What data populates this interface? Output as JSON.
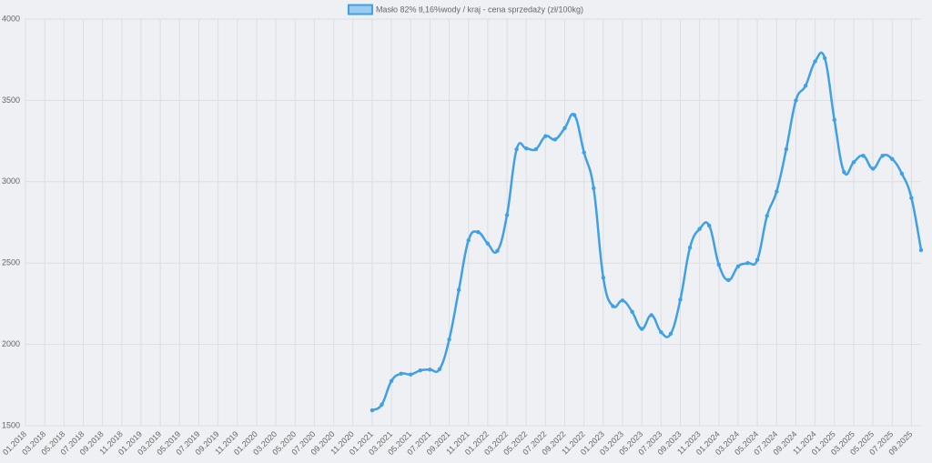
{
  "chart_data": {
    "type": "line",
    "categories": [
      "01.2018",
      null,
      "03.2018",
      null,
      "05.2018",
      null,
      "07.2018",
      null,
      "09.2018",
      null,
      "11.2018",
      null,
      "01.2019",
      null,
      "03.2019",
      null,
      "05.2019",
      null,
      "07.2019",
      null,
      "09.2019",
      null,
      "11.2019",
      null,
      "01.2020",
      null,
      "03.2020",
      null,
      "05.2020",
      null,
      "07.2020",
      null,
      "09.2020",
      null,
      "11.2020",
      null,
      "01.2021",
      null,
      "03.2021",
      null,
      "05.2021",
      null,
      "07.2021",
      null,
      "09.2021",
      null,
      "11.2021",
      null,
      "01.2022",
      null,
      "03.2022",
      null,
      "05.2022",
      null,
      "07.2022",
      null,
      "09.2022",
      null,
      "11.2022",
      null,
      "01.2023",
      null,
      "03.2023",
      null,
      "05.2023",
      null,
      "07.2023",
      null,
      "09.2023",
      null,
      "11.2023",
      null,
      "01.2024",
      null,
      "03.2024",
      null,
      "05.2024",
      null,
      "07.2024",
      null,
      "09.2024",
      null,
      "11.2024",
      null,
      "01.2025",
      null,
      "03.2025",
      null,
      "05.2025",
      null,
      "07.2025",
      null,
      "09.2025",
      null
    ],
    "series": [
      {
        "name": "Masło 82% tł,16%wody / kraj - cena sprzedaży (zł/100kg)",
        "color": "#3ea0e6",
        "values": [
          null,
          null,
          null,
          null,
          null,
          null,
          null,
          null,
          null,
          null,
          null,
          null,
          null,
          null,
          null,
          null,
          null,
          null,
          null,
          null,
          null,
          null,
          null,
          null,
          null,
          null,
          null,
          null,
          null,
          null,
          null,
          null,
          null,
          null,
          null,
          null,
          1595,
          1630,
          1775,
          1820,
          1815,
          1840,
          1845,
          1848,
          2030,
          2335,
          2640,
          2690,
          2620,
          2575,
          2795,
          3200,
          3205,
          3200,
          3280,
          3260,
          3330,
          3410,
          3180,
          2960,
          2410,
          2235,
          2270,
          2200,
          2095,
          2180,
          2075,
          2065,
          2275,
          2595,
          2710,
          2730,
          2490,
          2395,
          2480,
          2500,
          2520,
          2790,
          2940,
          3200,
          3500,
          3590,
          3740,
          3760,
          3380,
          3060,
          3120,
          3160,
          3080,
          3160,
          3140,
          3050,
          2900,
          2580
        ]
      }
    ],
    "ylim": [
      1500,
      4000
    ],
    "yticks": [
      1500,
      2000,
      2500,
      3000,
      3500,
      4000
    ],
    "grid": true
  }
}
